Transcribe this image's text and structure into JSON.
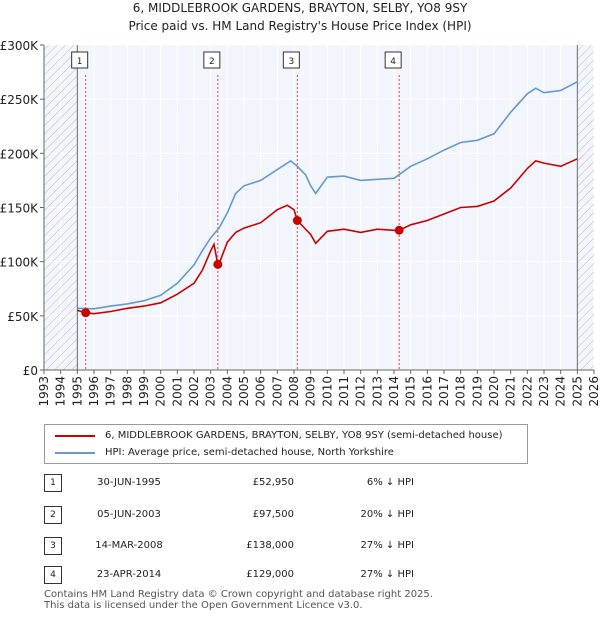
{
  "chart_data": {
    "type": "line",
    "title": "6, MIDDLEBROOK GARDENS, BRAYTON, SELBY, YO8 9SY",
    "subtitle": "Price paid vs. HM Land Registry's House Price Index (HPI)",
    "xlabel": "",
    "ylabel": "",
    "xlim": [
      1993,
      2026
    ],
    "ylim": [
      0,
      300000
    ],
    "x_ticks": [
      1993,
      1994,
      1995,
      1996,
      1997,
      1998,
      1999,
      2000,
      2001,
      2002,
      2003,
      2004,
      2005,
      2006,
      2007,
      2008,
      2009,
      2010,
      2011,
      2012,
      2013,
      2014,
      2015,
      2016,
      2017,
      2018,
      2019,
      2020,
      2021,
      2022,
      2023,
      2024,
      2025,
      2026
    ],
    "y_ticks": [
      {
        "value": 0,
        "label": "£0"
      },
      {
        "value": 50000,
        "label": "£50K"
      },
      {
        "value": 100000,
        "label": "£100K"
      },
      {
        "value": 150000,
        "label": "£150K"
      },
      {
        "value": 200000,
        "label": "£200K"
      },
      {
        "value": 250000,
        "label": "£250K"
      },
      {
        "value": 300000,
        "label": "£300K"
      }
    ],
    "hatch_before": 1995.0,
    "hatch_after": 2025.0,
    "series": [
      {
        "name": "6, MIDDLEBROOK GARDENS, BRAYTON, SELBY, YO8 9SY (semi-detached house)",
        "color": "#cc0000",
        "x": [
          1995.0,
          1995.5,
          1996.0,
          1997.0,
          1998.0,
          1999.0,
          2000.0,
          2001.0,
          2002.0,
          2002.5,
          2003.0,
          2003.2,
          2003.43,
          2003.6,
          2004.0,
          2004.5,
          2005.0,
          2006.0,
          2007.0,
          2007.6,
          2008.0,
          2008.2,
          2009.0,
          2009.3,
          2010.0,
          2011.0,
          2012.0,
          2013.0,
          2014.0,
          2014.31,
          2015.0,
          2016.0,
          2017.0,
          2018.0,
          2019.0,
          2020.0,
          2021.0,
          2022.0,
          2022.5,
          2023.0,
          2024.0,
          2025.0
        ],
        "y": [
          55000,
          52950,
          52000,
          54000,
          57000,
          59000,
          62000,
          70000,
          80000,
          92000,
          110000,
          116000,
          97500,
          102000,
          118000,
          127000,
          131000,
          136000,
          148000,
          152000,
          148000,
          138000,
          125000,
          117000,
          128000,
          130000,
          127000,
          130000,
          129000,
          129000,
          134000,
          138000,
          144000,
          150000,
          151000,
          156000,
          168000,
          186000,
          193000,
          191000,
          188000,
          195000
        ]
      },
      {
        "name": "HPI: Average price, semi-detached house, North Yorkshire",
        "color": "#6699cc",
        "x": [
          1995.0,
          1996.0,
          1997.0,
          1998.0,
          1999.0,
          2000.0,
          2001.0,
          2002.0,
          2002.5,
          2003.0,
          2003.5,
          2004.0,
          2004.5,
          2005.0,
          2006.0,
          2007.0,
          2007.8,
          2008.2,
          2008.7,
          2009.0,
          2009.3,
          2010.0,
          2011.0,
          2012.0,
          2013.0,
          2014.0,
          2015.0,
          2016.0,
          2017.0,
          2018.0,
          2019.0,
          2020.0,
          2021.0,
          2022.0,
          2022.5,
          2023.0,
          2024.0,
          2025.0
        ],
        "y": [
          57000,
          56500,
          59000,
          61000,
          64000,
          69000,
          80000,
          97000,
          110000,
          122000,
          131000,
          145000,
          163000,
          170000,
          175000,
          185000,
          193000,
          188000,
          180000,
          170000,
          163000,
          178000,
          179000,
          175000,
          176000,
          177000,
          188000,
          195000,
          203000,
          210000,
          212000,
          218000,
          238000,
          255000,
          260000,
          256000,
          258000,
          266000
        ]
      }
    ],
    "annotations": [
      {
        "label": "1",
        "x": 1995.5,
        "price": 52950
      },
      {
        "label": "2",
        "x": 2003.43,
        "price": 97500
      },
      {
        "label": "3",
        "x": 2008.2,
        "price": 138000
      },
      {
        "label": "4",
        "x": 2014.31,
        "price": 129000
      }
    ]
  },
  "legend": {
    "property_label": "6, MIDDLEBROOK GARDENS, BRAYTON, SELBY, YO8 9SY (semi-detached house)",
    "hpi_label": "HPI: Average price, semi-detached house, North Yorkshire",
    "property_color": "#cc0000",
    "hpi_color": "#6699cc"
  },
  "transactions": [
    {
      "num": "1",
      "date": "30-JUN-1995",
      "price": "£52,950",
      "hpi": "6% ↓ HPI"
    },
    {
      "num": "2",
      "date": "05-JUN-2003",
      "price": "£97,500",
      "hpi": "20% ↓ HPI"
    },
    {
      "num": "3",
      "date": "14-MAR-2008",
      "price": "£138,000",
      "hpi": "27% ↓ HPI"
    },
    {
      "num": "4",
      "date": "23-APR-2014",
      "price": "£129,000",
      "hpi": "27% ↓ HPI"
    }
  ],
  "footer": {
    "line1": "Contains HM Land Registry data © Crown copyright and database right 2025.",
    "line2": "This data is licensed under the Open Government Licence v3.0."
  }
}
